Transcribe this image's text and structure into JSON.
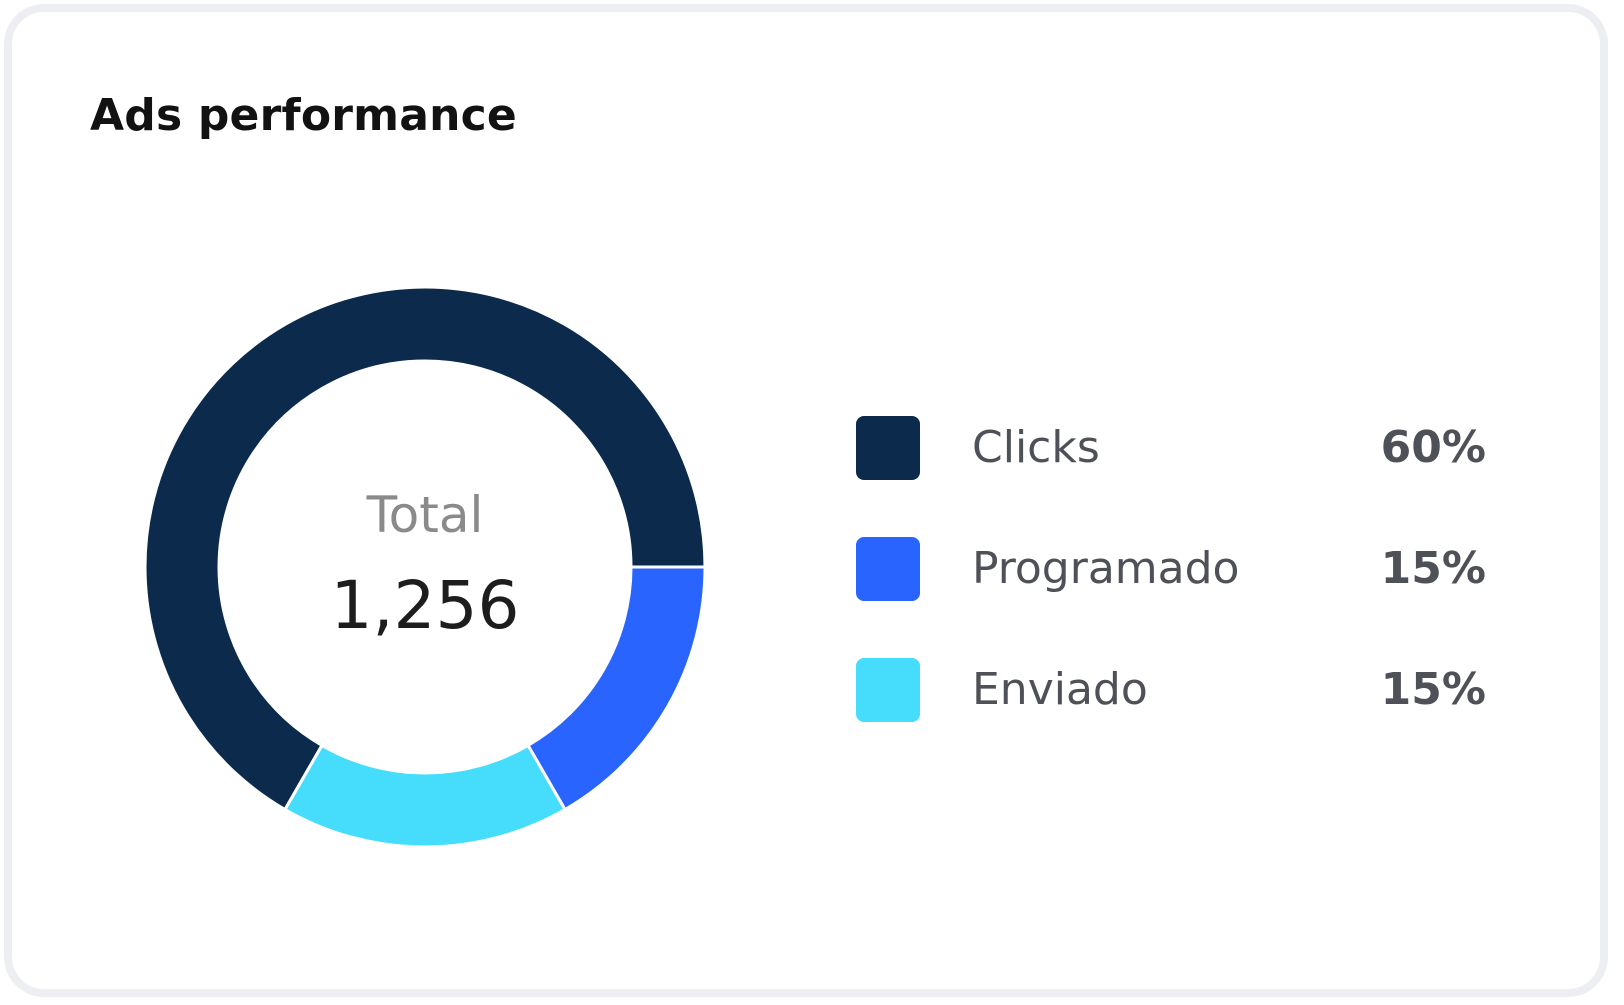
{
  "card": {
    "title": "Ads performance"
  },
  "chart_data": {
    "type": "pie",
    "style": "donut",
    "center_label": "Total",
    "center_value": "1,256",
    "categories": [
      "Clicks",
      "Programado",
      "Enviado"
    ],
    "values": [
      60,
      15,
      15
    ],
    "value_labels": [
      "60%",
      "15%",
      "15%"
    ],
    "colors": [
      "#0b2a4c",
      "#2a64ff",
      "#46dcfc"
    ],
    "legend_position": "right"
  },
  "legend": [
    {
      "label": "Clicks",
      "value": "60%",
      "color": "#0b2a4c"
    },
    {
      "label": "Programado",
      "value": "15%",
      "color": "#2a64ff"
    },
    {
      "label": "Enviado",
      "value": "15%",
      "color": "#46dcfc"
    }
  ]
}
